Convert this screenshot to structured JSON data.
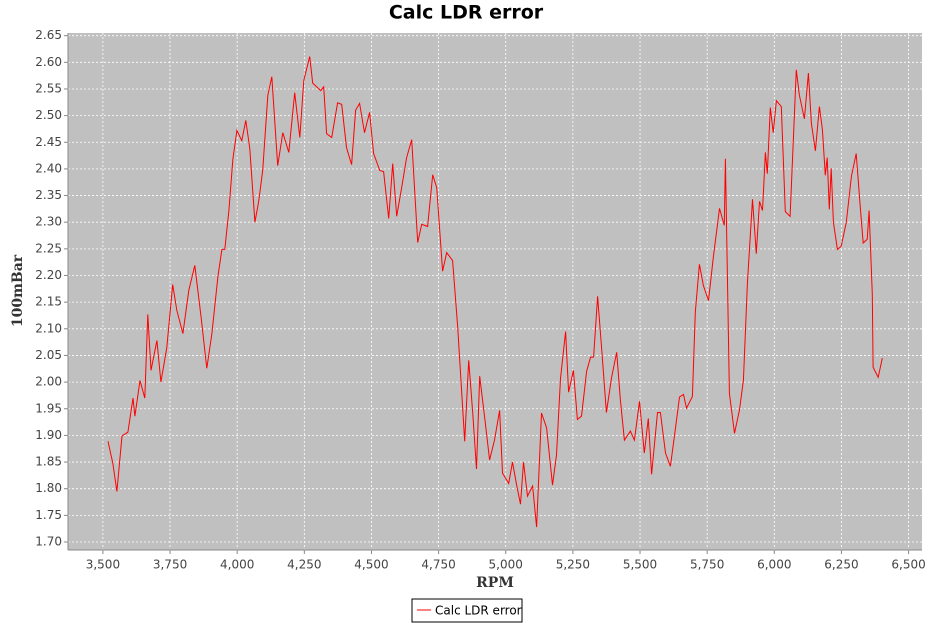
{
  "chart_data": {
    "type": "line",
    "title": "Calc LDR error",
    "xlabel": "RPM",
    "ylabel": "100mBar",
    "x": [
      3519,
      3537,
      3552,
      3571,
      3593,
      3612,
      3619,
      3638,
      3656,
      3667,
      3679,
      3701,
      3716,
      3738,
      3760,
      3775,
      3798,
      3820,
      3842,
      3865,
      3887,
      3906,
      3928,
      3943,
      3954,
      3969,
      3984,
      3999,
      4017,
      4032,
      4047,
      4066,
      4080,
      4095,
      4114,
      4129,
      4151,
      4170,
      4192,
      4214,
      4233,
      4248,
      4270,
      4281,
      4311,
      4322,
      4333,
      4352,
      4374,
      4389,
      4407,
      4426,
      4441,
      4456,
      4474,
      4493,
      4508,
      4531,
      4545,
      4564,
      4579,
      4594,
      4612,
      4631,
      4650,
      4672,
      4687,
      4709,
      4728,
      4743,
      4765,
      4780,
      4802,
      4821,
      4847,
      4862,
      4877,
      4891,
      4903,
      4921,
      4940,
      4958,
      4977,
      4988,
      5011,
      5025,
      5040,
      5055,
      5066,
      5081,
      5100,
      5115,
      5133,
      5152,
      5174,
      5189,
      5204,
      5223,
      5234,
      5252,
      5267,
      5282,
      5301,
      5316,
      5327,
      5342,
      5357,
      5375,
      5394,
      5413,
      5427,
      5442,
      5464,
      5479,
      5498,
      5516,
      5531,
      5543,
      5565,
      5576,
      5595,
      5613,
      5632,
      5647,
      5662,
      5673,
      5695,
      5706,
      5721,
      5736,
      5755,
      5773,
      5796,
      5814,
      5818,
      5833,
      5852,
      5870,
      5885,
      5900,
      5919,
      5933,
      5945,
      5956,
      5967,
      5974,
      5985,
      5996,
      6008,
      6026,
      6041,
      6059,
      6082,
      6093,
      6112,
      6127,
      6138,
      6153,
      6168,
      6179,
      6190,
      6197,
      6205,
      6212,
      6220,
      6235,
      6249,
      6268,
      6287,
      6305,
      6320,
      6331,
      6346,
      6353,
      6365,
      6368,
      6387,
      6402
    ],
    "series": [
      {
        "name": "Calc LDR error",
        "color": "#ff0000",
        "values": [
          1.889,
          1.848,
          1.795,
          1.899,
          1.906,
          1.97,
          1.936,
          2.003,
          1.97,
          2.127,
          2.022,
          2.078,
          2.0,
          2.065,
          2.183,
          2.135,
          2.091,
          2.172,
          2.219,
          2.125,
          2.026,
          2.091,
          2.198,
          2.249,
          2.249,
          2.322,
          2.419,
          2.472,
          2.453,
          2.491,
          2.438,
          2.3,
          2.339,
          2.397,
          2.538,
          2.573,
          2.406,
          2.468,
          2.431,
          2.543,
          2.459,
          2.566,
          2.611,
          2.561,
          2.547,
          2.554,
          2.466,
          2.459,
          2.524,
          2.521,
          2.44,
          2.408,
          2.51,
          2.523,
          2.468,
          2.506,
          2.429,
          2.397,
          2.395,
          2.307,
          2.41,
          2.311,
          2.363,
          2.421,
          2.455,
          2.262,
          2.296,
          2.292,
          2.389,
          2.365,
          2.208,
          2.243,
          2.228,
          2.103,
          1.889,
          2.041,
          1.943,
          1.837,
          2.011,
          1.936,
          1.854,
          1.891,
          1.947,
          1.829,
          1.81,
          1.85,
          1.808,
          1.771,
          1.85,
          1.786,
          1.805,
          1.728,
          1.942,
          1.914,
          1.807,
          1.863,
          2.007,
          2.095,
          1.981,
          2.022,
          1.93,
          1.936,
          2.02,
          2.047,
          2.047,
          2.161,
          2.064,
          1.943,
          2.009,
          2.056,
          1.966,
          1.891,
          1.908,
          1.891,
          1.964,
          1.867,
          1.932,
          1.827,
          1.943,
          1.943,
          1.867,
          1.842,
          1.914,
          1.972,
          1.977,
          1.951,
          1.973,
          2.131,
          2.221,
          2.181,
          2.153,
          2.234,
          2.326,
          2.294,
          2.419,
          1.979,
          1.904,
          1.947,
          2.003,
          2.185,
          2.343,
          2.241,
          2.339,
          2.322,
          2.431,
          2.391,
          2.515,
          2.468,
          2.528,
          2.517,
          2.32,
          2.311,
          2.586,
          2.539,
          2.494,
          2.58,
          2.485,
          2.434,
          2.517,
          2.474,
          2.388,
          2.421,
          2.324,
          2.401,
          2.3,
          2.249,
          2.255,
          2.3,
          2.386,
          2.429,
          2.33,
          2.261,
          2.268,
          2.322,
          2.165,
          2.028,
          2.009,
          2.045
        ]
      }
    ],
    "xlim": [
      3370,
      6550
    ],
    "ylim": [
      1.685,
      2.655
    ],
    "xticks": [
      {
        "value": 3500,
        "label": "3,500"
      },
      {
        "value": 3750,
        "label": "3,750"
      },
      {
        "value": 4000,
        "label": "4,000"
      },
      {
        "value": 4250,
        "label": "4,250"
      },
      {
        "value": 4500,
        "label": "4,500"
      },
      {
        "value": 4750,
        "label": "4,750"
      },
      {
        "value": 5000,
        "label": "5,000"
      },
      {
        "value": 5250,
        "label": "5,250"
      },
      {
        "value": 5500,
        "label": "5,500"
      },
      {
        "value": 5750,
        "label": "5,750"
      },
      {
        "value": 6000,
        "label": "6,000"
      },
      {
        "value": 6250,
        "label": "6,250"
      },
      {
        "value": 6500,
        "label": "6,500"
      }
    ],
    "yticks": [
      {
        "value": 1.7,
        "label": "1.70"
      },
      1.75,
      {
        "value": 1.8,
        "label": "1.80"
      },
      1.85,
      {
        "value": 1.9,
        "label": "1.90"
      },
      1.95,
      {
        "value": 2.0,
        "label": "2.00"
      },
      2.05,
      {
        "value": 2.1,
        "label": "2.10"
      },
      2.15,
      {
        "value": 2.2,
        "label": "2.20"
      },
      2.25,
      {
        "value": 2.3,
        "label": "2.30"
      },
      2.35,
      {
        "value": 2.4,
        "label": "2.40"
      },
      2.45,
      {
        "value": 2.5,
        "label": "2.50"
      },
      2.55,
      {
        "value": 2.6,
        "label": "2.60"
      },
      2.65
    ],
    "grid": true,
    "legend": "bottom"
  }
}
